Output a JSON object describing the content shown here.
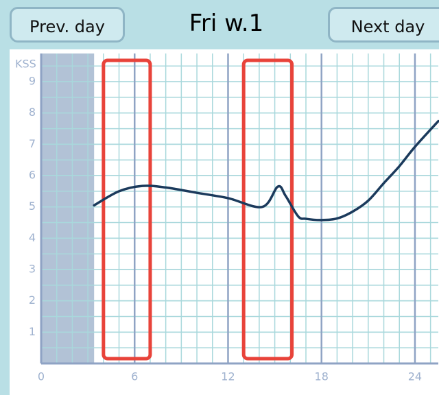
{
  "header": {
    "prev_button": "Prev. day",
    "title": "Fri w.1",
    "next_button": "Next day"
  },
  "chart_data": {
    "type": "line",
    "y_label": "KSS",
    "x": [
      3.4,
      5,
      6.5,
      8,
      10,
      12,
      14.2,
      15.2,
      15.7,
      16.5,
      17,
      18,
      19,
      20,
      21,
      22,
      23,
      24,
      25.5
    ],
    "series": [
      {
        "name": "KSS",
        "color": "#1b3a5c",
        "values": [
          5.05,
          5.5,
          5.67,
          5.62,
          5.45,
          5.28,
          5.0,
          5.65,
          5.35,
          4.7,
          4.62,
          4.58,
          4.63,
          4.85,
          5.2,
          5.76,
          6.3,
          6.92,
          7.74
        ]
      }
    ],
    "shaded_region": [
      0,
      3.4
    ],
    "highlights": [
      [
        4,
        7
      ],
      [
        13,
        16.1
      ]
    ],
    "highlight_color": "#e8433a",
    "xlim": [
      0,
      25.5
    ],
    "ylim": [
      0,
      9.9
    ],
    "xticks": [
      0,
      6,
      12,
      18,
      24
    ],
    "yticks": [
      1,
      2,
      3,
      4,
      5,
      6,
      7,
      8,
      9
    ],
    "grid": true
  }
}
